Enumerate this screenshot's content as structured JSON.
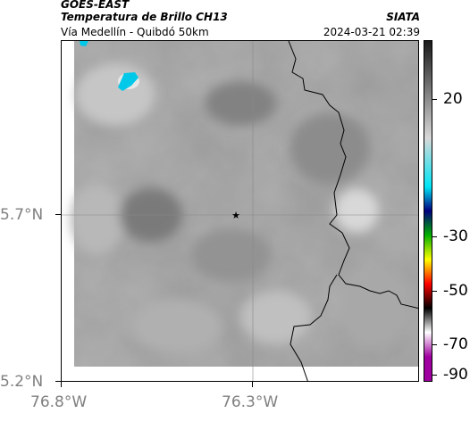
{
  "header": {
    "satellite": "GOES-EAST",
    "product": "Temperatura de Brillo CH13",
    "region": "Vía Medellín - Quibdó 50km",
    "source": "SIATA",
    "timestamp": "2024-03-21 02:39"
  },
  "axes": {
    "lat_labels": [
      "5.7°N",
      "5.2°N"
    ],
    "lon_labels": [
      "76.8°W",
      "76.3°W"
    ]
  },
  "colorbar": {
    "ticks": [
      "20",
      "-30",
      "-50",
      "-70",
      "-90"
    ],
    "stops": [
      {
        "value": 40,
        "color": "#1a1a1a"
      },
      {
        "value": 0,
        "color": "#d8d8d8"
      },
      {
        "value": -20,
        "color": "#00e5f5"
      },
      {
        "value": -30,
        "color": "#000080"
      },
      {
        "value": -40,
        "color": "#00b000"
      },
      {
        "value": -50,
        "color": "#ffff00"
      },
      {
        "value": -60,
        "color": "#ff0000"
      },
      {
        "value": -70,
        "color": "#000000"
      },
      {
        "value": -80,
        "color": "#ffffff"
      },
      {
        "value": -90,
        "color": "#a000a0"
      }
    ]
  },
  "marker": {
    "name": "star",
    "symbol": "★"
  },
  "colors": {
    "cold_cloud": "#00c8e8",
    "background_gray": "#9a9a9a"
  }
}
